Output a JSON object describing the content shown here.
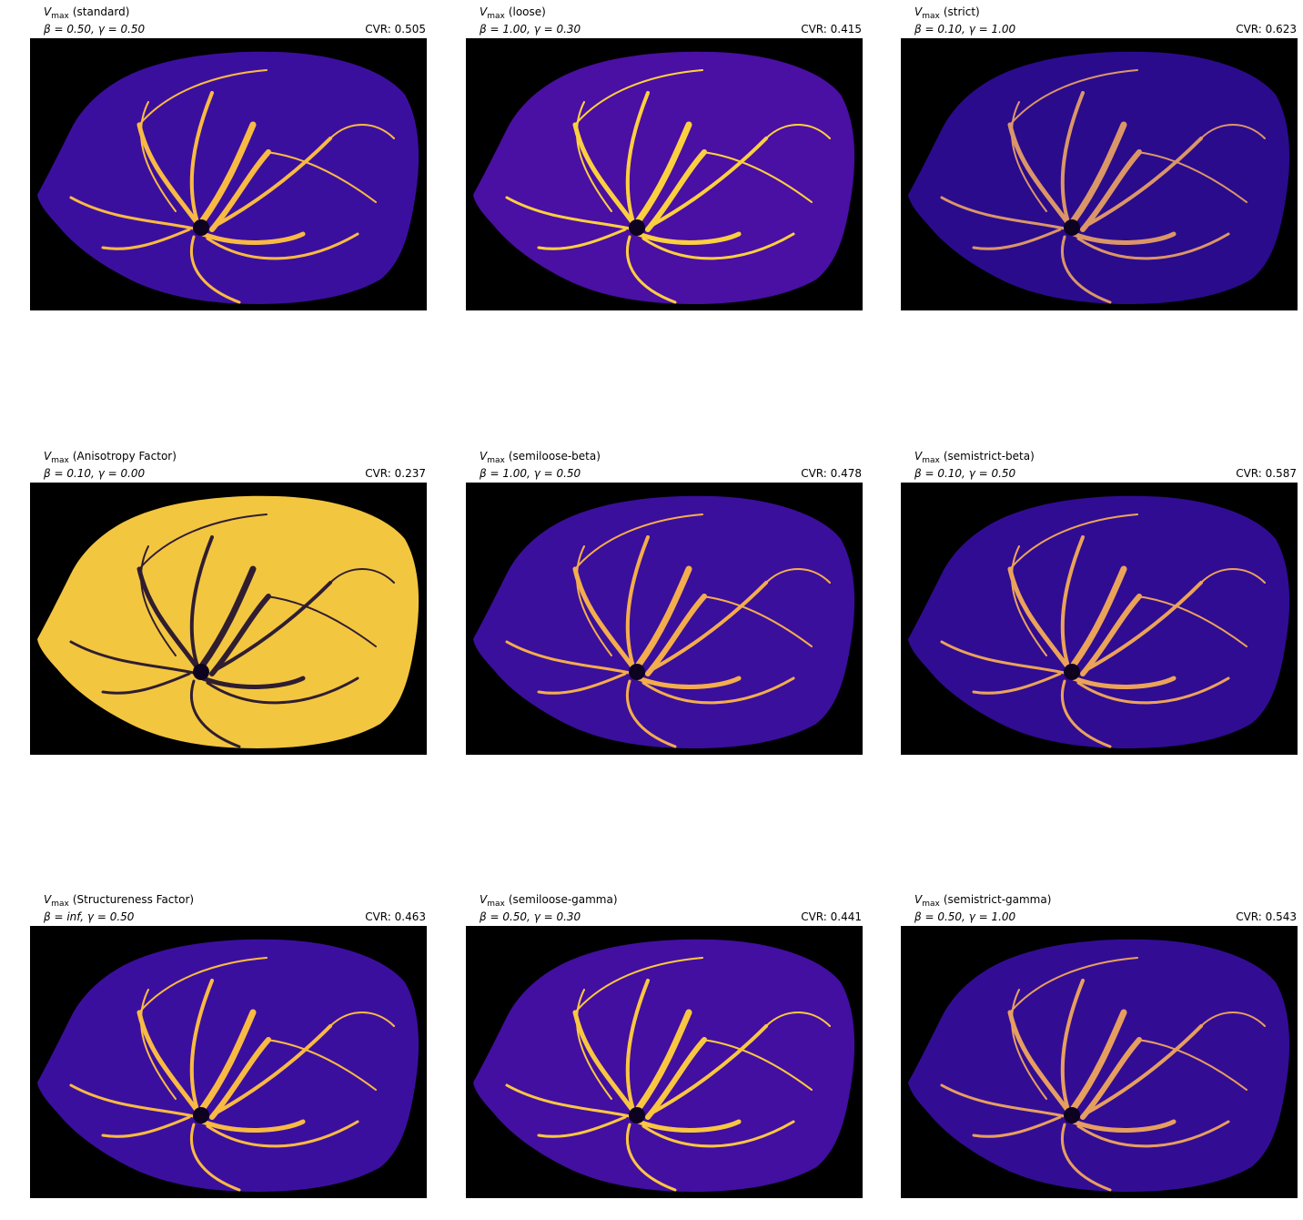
{
  "panels": [
    {
      "symbol": "V",
      "subscript": "max",
      "label": "(standard)",
      "params": "β = 0.50, γ = 0.50",
      "cvr": "CVR: 0.505",
      "fill": "#3b0f9e",
      "vessel": "#f2843a"
    },
    {
      "symbol": "V",
      "subscript": "max",
      "label": "(loose)",
      "params": "β = 1.00, γ = 0.30",
      "cvr": "CVR: 0.415",
      "fill": "#4a0fa3",
      "vessel": "#f9b232"
    },
    {
      "symbol": "V",
      "subscript": "max",
      "label": "(strict)",
      "params": "β = 0.10, γ = 1.00",
      "cvr": "CVR: 0.623",
      "fill": "#2a0b8c",
      "vessel": "#b0338a"
    },
    {
      "symbol": "V",
      "subscript": "max",
      "label": "(Anisotropy Factor)",
      "params": "β = 0.10, γ = 0.00",
      "cvr": "CVR: 0.237",
      "fill": "#f3c63f",
      "vessel": "#fcf23a"
    },
    {
      "symbol": "V",
      "subscript": "max",
      "label": "(semiloose-beta)",
      "params": "β = 1.00, γ = 0.50",
      "cvr": "CVR: 0.478",
      "fill": "#3a0f9c",
      "vessel": "#e8684e"
    },
    {
      "symbol": "V",
      "subscript": "max",
      "label": "(semistrict-beta)",
      "params": "β = 0.10, γ = 0.50",
      "cvr": "CVR: 0.587",
      "fill": "#300c92",
      "vessel": "#d4506a"
    },
    {
      "symbol": "V",
      "subscript": "max",
      "label": "(Structureness Factor)",
      "params": "β = inf, γ = 0.50",
      "cvr": "CVR: 0.463",
      "fill": "#3b0f9e",
      "vessel": "#f2843a"
    },
    {
      "symbol": "V",
      "subscript": "max",
      "label": "(semiloose-gamma)",
      "params": "β = 0.50, γ = 0.30",
      "cvr": "CVR: 0.441",
      "fill": "#420fa0",
      "vessel": "#f69e36"
    },
    {
      "symbol": "V",
      "subscript": "max",
      "label": "(semistrict-gamma)",
      "params": "β = 0.50, γ = 1.00",
      "cvr": "CVR: 0.543",
      "fill": "#320d94",
      "vessel": "#cc4778"
    }
  ]
}
